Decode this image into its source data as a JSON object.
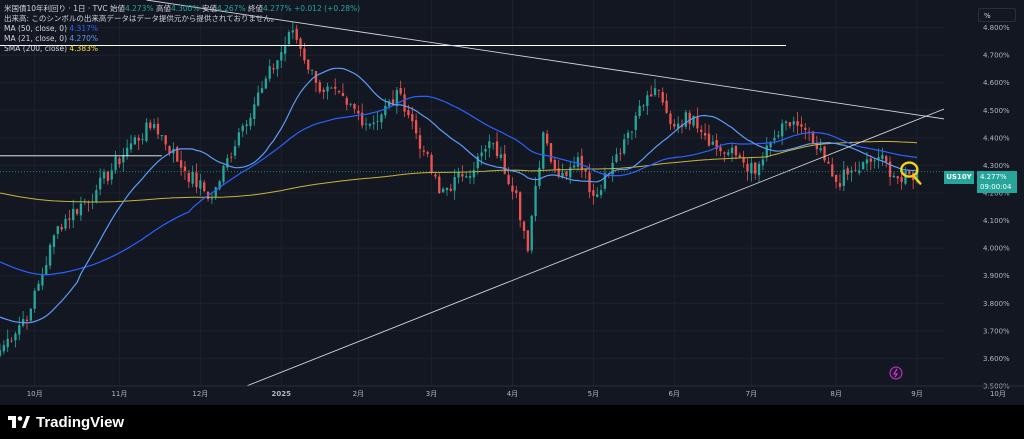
{
  "legend": {
    "title": "米国債10年利回り · 1日 · TVC",
    "open_label": "始値",
    "open": "4.273%",
    "high_label": "高値",
    "high": "4.300%",
    "low_label": "安値",
    "low": "4.267%",
    "close_label": "終値",
    "close": "4.277%",
    "change": "+0.012 (+0.28%)",
    "volume_note": "出来高: このシンボルの出来高データはデータ提供元から提供されておりません。",
    "ma50_label": "MA (50, close, 0)",
    "ma50_value": "4.317%",
    "ma21_label": "MA (21, close, 0)",
    "ma21_value": "4.270%",
    "sma200_label": "SMA (200, close)",
    "sma200_value": "4.383%"
  },
  "axis_unit": "%",
  "badge": {
    "symbol": "US10Y",
    "price": "4.277%",
    "countdown": "09:00:04"
  },
  "footer": {
    "brand": "TradingView"
  },
  "colors": {
    "background": "#131722",
    "up": "#26a69a",
    "down": "#ef5350",
    "ma50": "#2962ff",
    "ma21": "#5b9cf6",
    "sma200": "#c9b43a",
    "trendline": "#d1d4dc",
    "annotation": "#f3d21a"
  },
  "chart_data": {
    "type": "candlestick",
    "ylim": [
      3.5,
      4.9
    ],
    "yticks": [
      3.5,
      3.6,
      3.7,
      3.8,
      3.9,
      4.0,
      4.1,
      4.2,
      4.3,
      4.4,
      4.5,
      4.6,
      4.7,
      4.8
    ],
    "ytick_labels": [
      "3.500%",
      "3.600%",
      "3.700%",
      "3.800%",
      "3.900%",
      "4.000%",
      "4.100%",
      "4.200%",
      "4.300%",
      "4.400%",
      "4.500%",
      "4.600%",
      "4.700%",
      "4.800%"
    ],
    "xlim_index": [
      0,
      245
    ],
    "xticks": [
      {
        "label": "10月",
        "index": 9
      },
      {
        "label": "11月",
        "index": 31
      },
      {
        "label": "12月",
        "index": 52
      },
      {
        "label": "2025",
        "index": 73
      },
      {
        "label": "2月",
        "index": 93
      },
      {
        "label": "3月",
        "index": 112
      },
      {
        "label": "4月",
        "index": 133
      },
      {
        "label": "5月",
        "index": 154
      },
      {
        "label": "6月",
        "index": 175
      },
      {
        "label": "7月",
        "index": 195
      },
      {
        "label": "8月",
        "index": 217
      },
      {
        "label": "9月",
        "index": 238
      },
      {
        "label": "10月",
        "index": 259
      }
    ],
    "series": [
      {
        "name": "MA (50, close, 0)",
        "color": "#2962ff"
      },
      {
        "name": "MA (21, close, 0)",
        "color": "#5b9cf6"
      },
      {
        "name": "SMA (200, close)",
        "color": "#c9b43a"
      }
    ],
    "key_points": [
      {
        "index": 0,
        "close": 3.63
      },
      {
        "index": 8,
        "close": 3.78
      },
      {
        "index": 15,
        "close": 4.08
      },
      {
        "index": 25,
        "close": 4.21
      },
      {
        "index": 34,
        "close": 4.38
      },
      {
        "index": 40,
        "close": 4.45
      },
      {
        "index": 48,
        "close": 4.28
      },
      {
        "index": 55,
        "close": 4.18
      },
      {
        "index": 62,
        "close": 4.42
      },
      {
        "index": 68,
        "close": 4.58
      },
      {
        "index": 76,
        "close": 4.79
      },
      {
        "index": 82,
        "close": 4.6
      },
      {
        "index": 90,
        "close": 4.52
      },
      {
        "index": 96,
        "close": 4.45
      },
      {
        "index": 104,
        "close": 4.56
      },
      {
        "index": 110,
        "close": 4.35
      },
      {
        "index": 114,
        "close": 4.2
      },
      {
        "index": 120,
        "close": 4.26
      },
      {
        "index": 128,
        "close": 4.38
      },
      {
        "index": 134,
        "close": 4.2
      },
      {
        "index": 137,
        "close": 3.99
      },
      {
        "index": 141,
        "close": 4.42
      },
      {
        "index": 145,
        "close": 4.26
      },
      {
        "index": 150,
        "close": 4.33
      },
      {
        "index": 154,
        "close": 4.19
      },
      {
        "index": 160,
        "close": 4.34
      },
      {
        "index": 165,
        "close": 4.48
      },
      {
        "index": 170,
        "close": 4.58
      },
      {
        "index": 174,
        "close": 4.45
      },
      {
        "index": 180,
        "close": 4.48
      },
      {
        "index": 186,
        "close": 4.36
      },
      {
        "index": 192,
        "close": 4.33
      },
      {
        "index": 196,
        "close": 4.27
      },
      {
        "index": 201,
        "close": 4.4
      },
      {
        "index": 206,
        "close": 4.46
      },
      {
        "index": 211,
        "close": 4.38
      },
      {
        "index": 217,
        "close": 4.24
      },
      {
        "index": 222,
        "close": 4.28
      },
      {
        "index": 228,
        "close": 4.33
      },
      {
        "index": 234,
        "close": 4.24
      },
      {
        "index": 238,
        "close": 4.277
      }
    ],
    "horizontal_lines": [
      {
        "y": 4.735,
        "from_index": 0,
        "to_index": 204
      },
      {
        "y": 4.335,
        "from_index": 0,
        "to_index": 42
      }
    ],
    "trendlines": [
      {
        "from": {
          "index": 38,
          "y": 4.9
        },
        "to": {
          "index": 254,
          "y": 4.45
        }
      },
      {
        "from": {
          "index": 64,
          "y": 3.5
        },
        "to": {
          "index": 255,
          "y": 4.56
        }
      }
    ],
    "current_price_line": 4.277
  }
}
